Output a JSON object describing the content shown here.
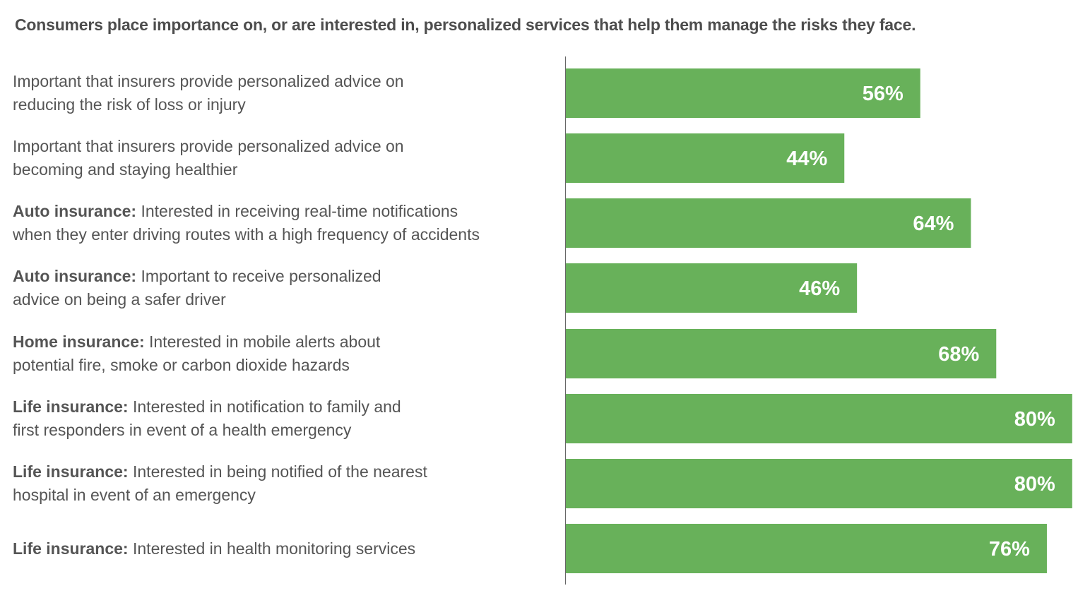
{
  "title": "Consumers place importance on, or are interested in, personalized services that help them manage the risks they face.",
  "colors": {
    "bar": "#68b15a",
    "label_text": "#555555",
    "title_text": "#4d4d4d",
    "axis": "#666666"
  },
  "rows": [
    {
      "prefix": "",
      "line1": "Important that insurers provide personalized advice on",
      "line2": "reducing the risk of loss or injury",
      "value_label": "56%"
    },
    {
      "prefix": "",
      "line1": "Important that insurers provide personalized advice on",
      "line2": "becoming and staying healthier",
      "value_label": "44%"
    },
    {
      "prefix": "Auto insurance:",
      "line1": " Interested in receiving real-time notifications",
      "line2": "when they enter driving routes with a high frequency of accidents",
      "value_label": "64%"
    },
    {
      "prefix": "Auto insurance:",
      "line1": " Important to receive personalized",
      "line2": "advice on being a safer driver",
      "value_label": "46%"
    },
    {
      "prefix": "Home insurance:",
      "line1": " Interested in mobile alerts about",
      "line2": "potential fire, smoke or carbon dioxide hazards",
      "value_label": "68%"
    },
    {
      "prefix": "Life insurance:",
      "line1": " Interested in notification to family and",
      "line2": "first responders in event of a health emergency",
      "value_label": "80%"
    },
    {
      "prefix": "Life insurance:",
      "line1": " Interested in being notified of the nearest",
      "line2": "hospital in event of an emergency",
      "value_label": "80%"
    },
    {
      "prefix": "Life insurance:",
      "line1": " Interested in health monitoring services",
      "line2": "",
      "value_label": "76%"
    }
  ],
  "chart_data": {
    "type": "bar",
    "orientation": "horizontal",
    "title": "Consumers place importance on, or are interested in, personalized services that help them manage the risks they face.",
    "categories": [
      "Important that insurers provide personalized advice on reducing the risk of loss or injury",
      "Important that insurers provide personalized advice on becoming and staying healthier",
      "Auto insurance: Interested in receiving real-time notifications when they enter driving routes with a high frequency of accidents",
      "Auto insurance: Important to receive personalized advice on being a safer driver",
      "Home insurance: Interested in mobile alerts about potential fire, smoke or carbon dioxide hazards",
      "Life insurance: Interested in notification to family and first responders in event of a health emergency",
      "Life insurance: Interested in being notified of the nearest hospital in event of an emergency",
      "Life insurance: Interested in health monitoring services"
    ],
    "values": [
      56,
      44,
      64,
      46,
      68,
      80,
      80,
      76
    ],
    "unit": "%",
    "xlim": [
      0,
      80
    ],
    "grid": false,
    "legend": "none"
  }
}
